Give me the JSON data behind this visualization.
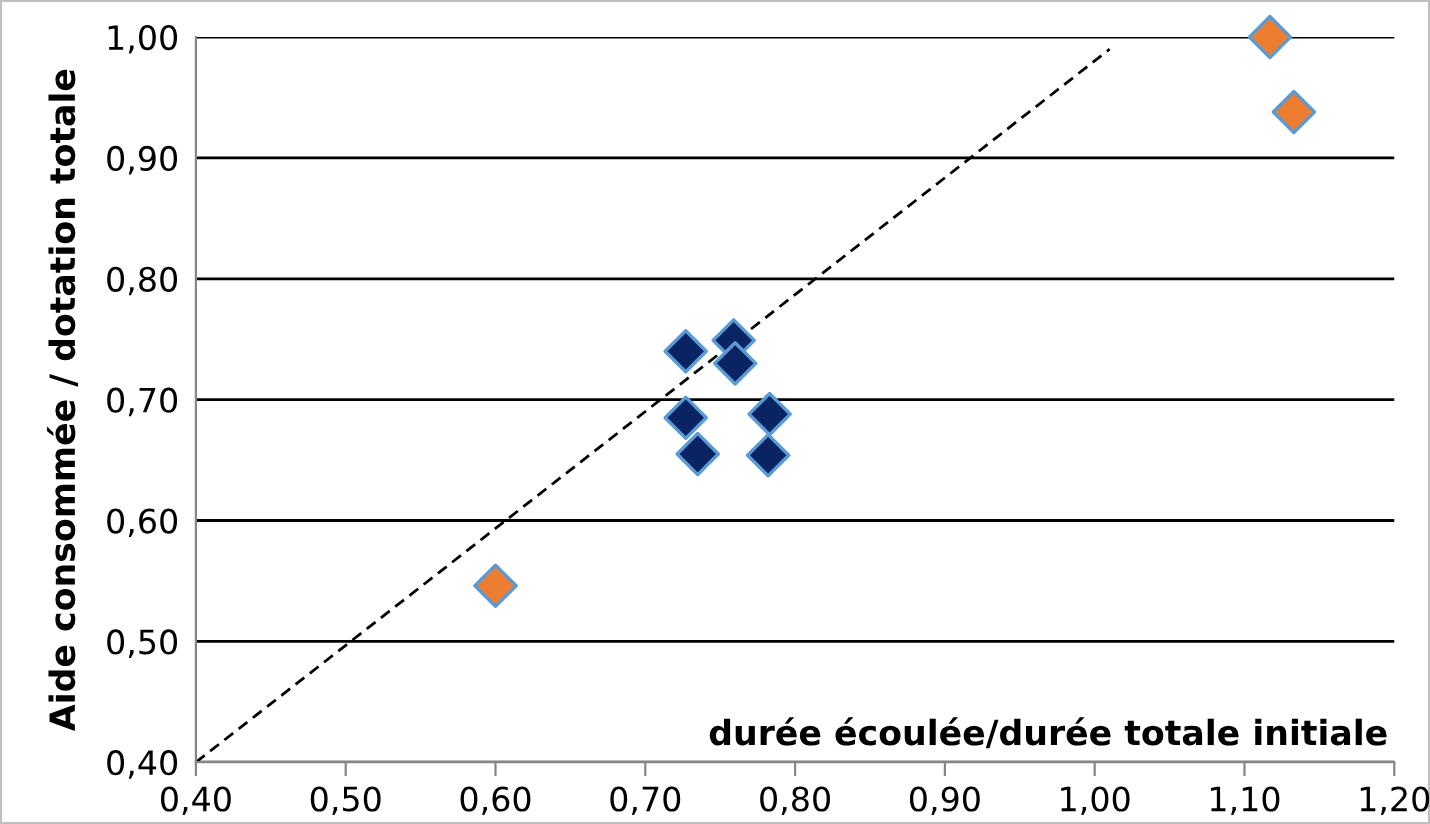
{
  "chart_data": {
    "type": "scatter",
    "xlabel": "durée écoulée/durée totale initiale",
    "ylabel": "Aide consommée / dotation totale",
    "xlim": [
      0.4,
      1.2
    ],
    "ylim": [
      0.4,
      1.0
    ],
    "xticks": [
      {
        "value": 0.4,
        "label": "0,40"
      },
      {
        "value": 0.5,
        "label": "0,50"
      },
      {
        "value": 0.6,
        "label": "0,60"
      },
      {
        "value": 0.7,
        "label": "0,70"
      },
      {
        "value": 0.8,
        "label": "0,80"
      },
      {
        "value": 0.9,
        "label": "0,90"
      },
      {
        "value": 1.0,
        "label": "1,00"
      },
      {
        "value": 1.1,
        "label": "1,10"
      },
      {
        "value": 1.2,
        "label": "1,20"
      }
    ],
    "yticks": [
      {
        "value": 0.4,
        "label": "0,40"
      },
      {
        "value": 0.5,
        "label": "0,50"
      },
      {
        "value": 0.6,
        "label": "0,60"
      },
      {
        "value": 0.7,
        "label": "0,70"
      },
      {
        "value": 0.8,
        "label": "0,80"
      },
      {
        "value": 0.9,
        "label": "0,90"
      },
      {
        "value": 1.0,
        "label": "1,00"
      }
    ],
    "grid": "y",
    "marker": "diamond",
    "series": [
      {
        "type": "line",
        "color": "#000000",
        "line_style": "dashed",
        "marker": "none",
        "x": [
          0.4,
          1.01
        ],
        "values": [
          0.4,
          0.99
        ]
      },
      {
        "color": "#0a2463",
        "x": [
          0.727,
          0.759,
          0.76,
          0.727,
          0.735,
          0.783,
          0.782
        ],
        "values": [
          0.74,
          0.749,
          0.73,
          0.685,
          0.655,
          0.688,
          0.654
        ]
      },
      {
        "color": "#ed7d31",
        "x": [
          0.6,
          1.117,
          1.133
        ],
        "values": [
          0.546,
          1.0,
          0.938
        ]
      }
    ]
  }
}
